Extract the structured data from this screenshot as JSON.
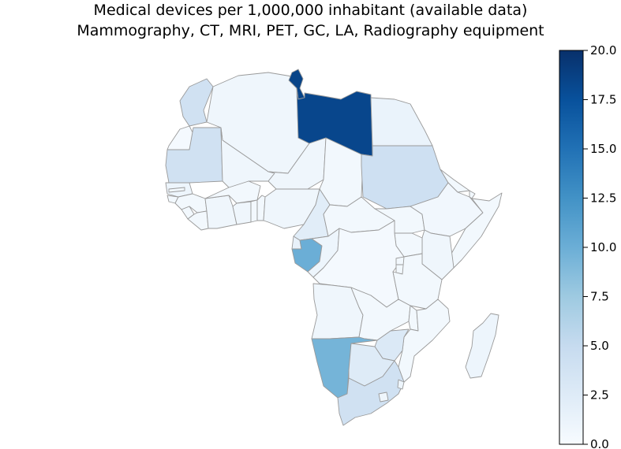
{
  "title": {
    "line1": "Medical devices per 1,000,000 inhabitant (available data)",
    "line2": "Mammography, CT, MRI, PET, GC, LA, Radiography equipment"
  },
  "colorbar": {
    "min": 0,
    "max": 20,
    "ticks": [
      "20.0",
      "17.5",
      "15.0",
      "12.5",
      "10.0",
      "7.5",
      "5.0",
      "2.5",
      "0.0"
    ],
    "colormap": "Blues",
    "stops": [
      "#f7fbff",
      "#deebf7",
      "#c6dbef",
      "#9ecae1",
      "#6baed6",
      "#4292c6",
      "#2171b5",
      "#08519c",
      "#08306b"
    ]
  },
  "map": {
    "region": "Africa",
    "border_color": "#9a9a9a",
    "country_values": {
      "morocco": 4.0,
      "western-sahara": 0.3,
      "algeria": 0.8,
      "tunisia": 18.5,
      "libya": 18.3,
      "egypt": 1.3,
      "mauritania": 4.0,
      "mali": 0.8,
      "niger": 0.8,
      "chad": 0.5,
      "sudan": 4.2,
      "south-sudan": 0.5,
      "eritrea": 0.5,
      "ethiopia": 0.6,
      "djibouti": 0.5,
      "somalia": 0.5,
      "senegal": 1.0,
      "gambia": 0.5,
      "guinea-bissau": 0.5,
      "guinea": 0.5,
      "sierra-leone": 0.5,
      "liberia": 0.5,
      "cote-divoire": 0.8,
      "burkina-faso": 0.5,
      "ghana": 0.8,
      "togo": 0.5,
      "benin": 0.5,
      "nigeria": 0.8,
      "cameroon": 2.2,
      "central-african-republic": 0.5,
      "equatorial-guinea": 1.5,
      "gabon": 10.0,
      "congo": 1.0,
      "dr-congo": 0.3,
      "uganda": 0.5,
      "kenya": 0.8,
      "rwanda": 0.5,
      "burundi": 0.5,
      "tanzania": 0.5,
      "angola": 0.8,
      "zambia": 0.5,
      "malawi": 0.5,
      "mozambique": 0.5,
      "zimbabwe": 2.8,
      "botswana": 2.5,
      "namibia": 9.5,
      "south-africa": 4.0,
      "lesotho": 0.8,
      "eswatini": 1.0,
      "madagascar": 1.0
    }
  }
}
